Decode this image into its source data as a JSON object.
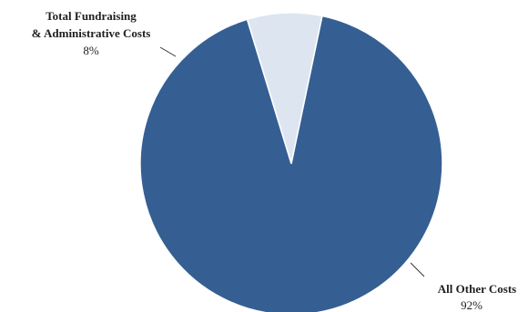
{
  "chart_data": {
    "type": "pie",
    "title": "",
    "start_angle_deg": -17,
    "slices": [
      {
        "label_lines": [
          "Total Fundraising",
          "& Administrative Costs"
        ],
        "percent_label": "8%",
        "value": 8,
        "color": "#dde5f1"
      },
      {
        "label_lines": [
          "All Other Costs"
        ],
        "percent_label": "92%",
        "value": 92,
        "color": "#355f93"
      }
    ],
    "edge_color": "#ffffff",
    "leader_color": "#333333",
    "legend": "none"
  }
}
